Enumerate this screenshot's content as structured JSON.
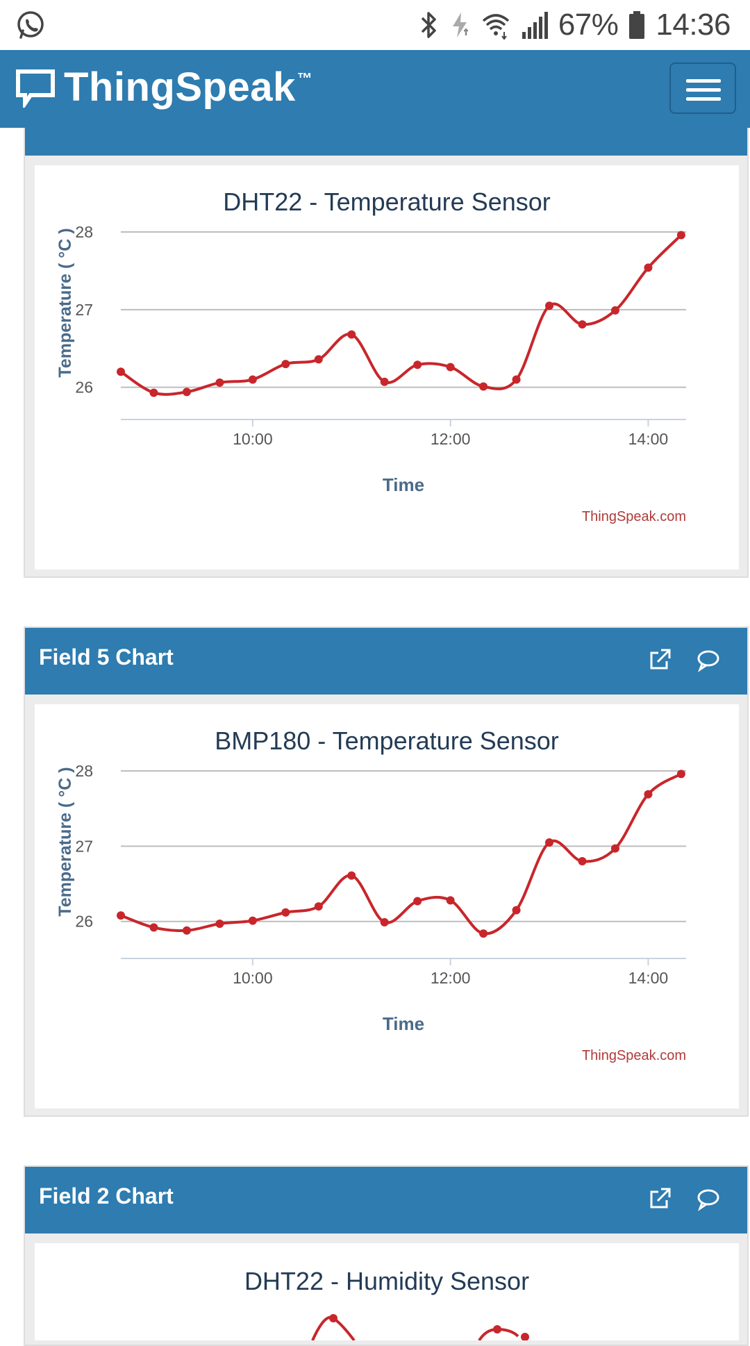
{
  "status_bar": {
    "battery": "67%",
    "time": "14:36",
    "icons": [
      "whatsapp-icon",
      "bluetooth-icon",
      "data-saver-icon",
      "wifi-icon",
      "signal-icon",
      "battery-icon"
    ]
  },
  "header": {
    "brand": "ThingSpeak",
    "trademark": "™",
    "icons": [
      "thingspeak-logo-icon",
      "hamburger-menu-icon"
    ]
  },
  "colors": {
    "accent": "#2e7cb0",
    "line": "#c8262b",
    "credit": "#b03a3a"
  },
  "panels": [
    {
      "header": "",
      "chart": {
        "title": "DHT22 - Temperature Sensor",
        "ylabel": "Temperature ( °C )",
        "xlabel": "Time",
        "credit": "ThingSpeak.com"
      }
    },
    {
      "header": "Field 5 Chart",
      "icons": [
        "external-link-icon",
        "comment-icon"
      ],
      "chart": {
        "title": "BMP180 - Temperature Sensor",
        "ylabel": "Temperature ( °C )",
        "xlabel": "Time",
        "credit": "ThingSpeak.com"
      }
    },
    {
      "header": "Field 2 Chart",
      "icons": [
        "external-link-icon",
        "comment-icon"
      ],
      "chart": {
        "title": "DHT22 - Humidity Sensor"
      }
    }
  ],
  "chart_data": [
    {
      "type": "line",
      "title": "DHT22 - Temperature Sensor",
      "xlabel": "Time",
      "ylabel": "Temperature ( °C )",
      "x_tick_labels": [
        "10:00",
        "12:00",
        "14:00"
      ],
      "y_tick_labels": [
        "26",
        "27",
        "28"
      ],
      "ylim": [
        25.8,
        28
      ],
      "xlim": [
        "08:40",
        "14:23"
      ],
      "grid": true,
      "series": [
        {
          "x": [
            "08:40",
            "09:00",
            "09:20",
            "09:40",
            "10:00",
            "10:20",
            "10:40",
            "11:00",
            "11:20",
            "11:40",
            "12:00",
            "12:20",
            "12:40",
            "13:00",
            "13:20",
            "13:40",
            "14:00",
            "14:20"
          ],
          "y": [
            26.2,
            25.93,
            25.94,
            26.06,
            26.1,
            26.3,
            26.36,
            26.68,
            26.07,
            26.29,
            26.26,
            26.01,
            26.1,
            27.05,
            26.81,
            26.99,
            27.54,
            27.96
          ]
        }
      ]
    },
    {
      "type": "line",
      "title": "BMP180 - Temperature Sensor",
      "xlabel": "Time",
      "ylabel": "Temperature ( °C )",
      "x_tick_labels": [
        "10:00",
        "12:00",
        "14:00"
      ],
      "y_tick_labels": [
        "26",
        "27",
        "28"
      ],
      "ylim": [
        25.73,
        28
      ],
      "xlim": [
        "08:40",
        "14:23"
      ],
      "grid": true,
      "series": [
        {
          "x": [
            "08:40",
            "09:00",
            "09:20",
            "09:40",
            "10:00",
            "10:20",
            "10:40",
            "11:00",
            "11:20",
            "11:40",
            "12:00",
            "12:20",
            "12:40",
            "13:00",
            "13:20",
            "13:40",
            "14:00",
            "14:20"
          ],
          "y": [
            26.08,
            25.92,
            25.88,
            25.97,
            26.01,
            26.12,
            26.2,
            26.61,
            25.99,
            26.27,
            26.28,
            25.84,
            26.15,
            27.05,
            26.8,
            26.97,
            27.69,
            27.96
          ]
        }
      ]
    }
  ]
}
